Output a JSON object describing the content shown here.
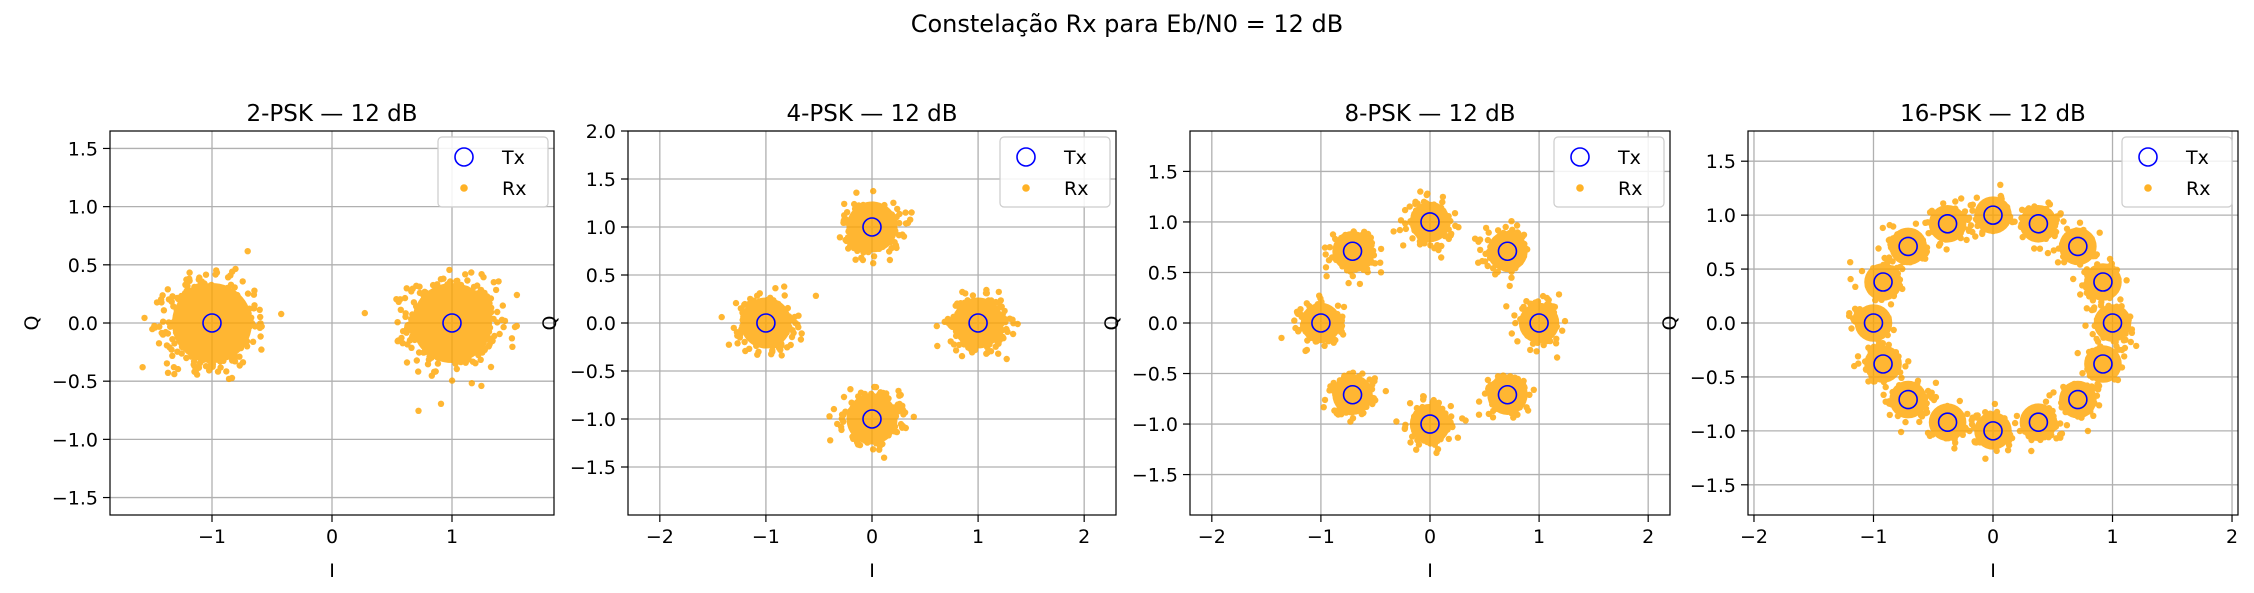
{
  "figure": {
    "suptitle": "Constelação Rx para Eb/N0 = 12 dB",
    "colors": {
      "tx": "#0000ff",
      "rx": "#ffa500",
      "grid": "#b0b0b0"
    }
  },
  "chart_data": [
    {
      "type": "scatter",
      "title": "2-PSK — 12 dB",
      "xlabel": "I",
      "ylabel": "Q",
      "xlim": [
        -1.85,
        1.85
      ],
      "ylim": [
        -1.65,
        1.65
      ],
      "xticks": [
        -1,
        0,
        1
      ],
      "yticks": [
        -1.5,
        -1.0,
        -0.5,
        0.0,
        0.5,
        1.0,
        1.5
      ],
      "grid": true,
      "legend": "top-right",
      "series": [
        {
          "name": "Tx",
          "marker": "hollow-circle",
          "color": "#0000ff",
          "points": [
            [
              1,
              0
            ],
            [
              -1,
              0
            ]
          ]
        },
        {
          "name": "Rx",
          "marker": "dot",
          "color": "#ffa500",
          "noise_std": 0.18
        }
      ]
    },
    {
      "type": "scatter",
      "title": "4-PSK — 12 dB",
      "xlabel": "I",
      "ylabel": "Q",
      "xlim": [
        -2.3,
        2.3
      ],
      "ylim": [
        -2.0,
        2.0
      ],
      "xticks": [
        -2,
        -1,
        0,
        1,
        2
      ],
      "yticks": [
        -1.5,
        -1.0,
        -0.5,
        0.0,
        0.5,
        1.0,
        1.5,
        2.0
      ],
      "grid": true,
      "legend": "top-right",
      "series": [
        {
          "name": "Tx",
          "marker": "hollow-circle",
          "color": "#0000ff",
          "points": [
            [
              1,
              0
            ],
            [
              0,
              1
            ],
            [
              -1,
              0
            ],
            [
              0,
              -1
            ]
          ]
        },
        {
          "name": "Rx",
          "marker": "dot",
          "color": "#ffa500",
          "noise_std": 0.13
        }
      ]
    },
    {
      "type": "scatter",
      "title": "8-PSK — 12 dB",
      "xlabel": "I",
      "ylabel": "Q",
      "xlim": [
        -2.2,
        2.2
      ],
      "ylim": [
        -1.9,
        1.9
      ],
      "xticks": [
        -2,
        -1,
        0,
        1,
        2
      ],
      "yticks": [
        -1.5,
        -1.0,
        -0.5,
        0.0,
        0.5,
        1.0,
        1.5
      ],
      "grid": true,
      "legend": "top-right",
      "series": [
        {
          "name": "Tx",
          "marker": "hollow-circle",
          "color": "#0000ff",
          "points": [
            [
              1,
              0
            ],
            [
              0.71,
              0.71
            ],
            [
              0,
              1
            ],
            [
              -0.71,
              0.71
            ],
            [
              -1,
              0
            ],
            [
              -0.71,
              -0.71
            ],
            [
              0,
              -1
            ],
            [
              0.71,
              -0.71
            ]
          ]
        },
        {
          "name": "Rx",
          "marker": "dot",
          "color": "#ffa500",
          "noise_std": 0.1
        }
      ]
    },
    {
      "type": "scatter",
      "title": "16-PSK — 12 dB",
      "xlabel": "I",
      "ylabel": "Q",
      "xlim": [
        -2.05,
        2.05
      ],
      "ylim": [
        -1.78,
        1.78
      ],
      "xticks": [
        -2,
        -1,
        0,
        1,
        2
      ],
      "yticks": [
        -1.5,
        -1.0,
        -0.5,
        0.0,
        0.5,
        1.0,
        1.5
      ],
      "grid": true,
      "legend": "top-right",
      "series": [
        {
          "name": "Tx",
          "marker": "hollow-circle",
          "color": "#0000ff",
          "points": [
            [
              1,
              0
            ],
            [
              0.92,
              0.38
            ],
            [
              0.71,
              0.71
            ],
            [
              0.38,
              0.92
            ],
            [
              0,
              1
            ],
            [
              -0.38,
              0.92
            ],
            [
              -0.71,
              0.71
            ],
            [
              -0.92,
              0.38
            ],
            [
              -1,
              0
            ],
            [
              -0.92,
              -0.38
            ],
            [
              -0.71,
              -0.71
            ],
            [
              -0.38,
              -0.92
            ],
            [
              0,
              -1
            ],
            [
              0.38,
              -0.92
            ],
            [
              0.71,
              -0.71
            ],
            [
              0.92,
              -0.38
            ]
          ]
        },
        {
          "name": "Rx",
          "marker": "dot",
          "color": "#ffa500",
          "noise_std": 0.085
        }
      ]
    }
  ]
}
